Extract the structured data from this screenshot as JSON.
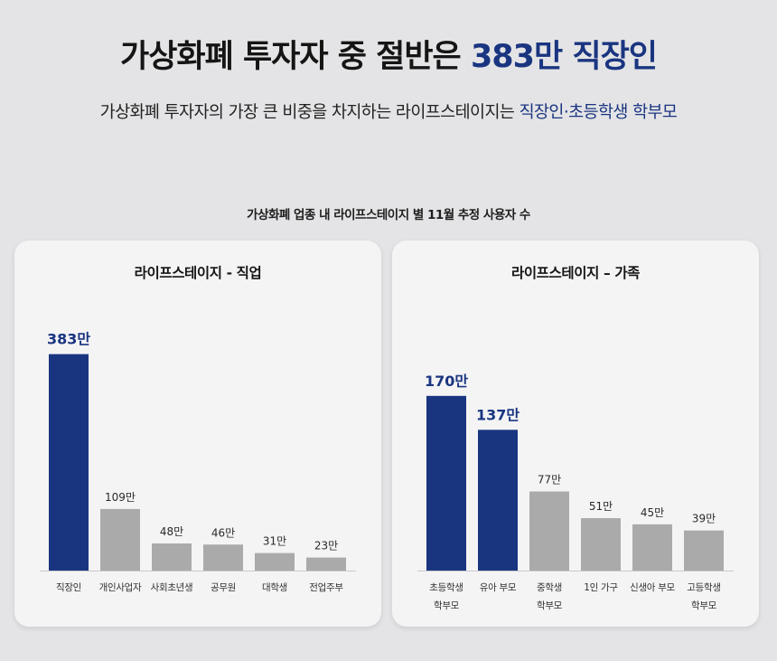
{
  "headline": {
    "main": "가상화폐 투자자 중 절반은 ",
    "highlight": "383만 직장인"
  },
  "subline": {
    "main": "가상화폐 투자자의 가장 큰 비중을 차지하는 라이프스테이지는 ",
    "highlight": "직장인·초등학생 학부모"
  },
  "caption": "가상화폐 업종 내 라이프스테이지 별 11월 추정 사용자 수",
  "colors": {
    "highlight": "#1a3580",
    "other": "#aaaaaa",
    "background": "#e4e4e6",
    "panel": "#f4f4f5"
  },
  "chart_data": [
    {
      "type": "bar",
      "title": "라이프스테이지 - 직업",
      "categories": [
        [
          "직장인"
        ],
        [
          "개인사업자"
        ],
        [
          "사회초년생"
        ],
        [
          "공무원"
        ],
        [
          "대학생"
        ],
        [
          "전업주부"
        ]
      ],
      "values": [
        383,
        109,
        48,
        46,
        31,
        23
      ],
      "value_labels": [
        "383만",
        "109만",
        "48만",
        "46만",
        "31만",
        "23만"
      ],
      "highlighted": [
        true,
        false,
        false,
        false,
        false,
        false
      ],
      "ylim": [
        0,
        400
      ],
      "grid": false,
      "legend": "none"
    },
    {
      "type": "bar",
      "title": "라이프스테이지  –  가족",
      "categories": [
        [
          "초등학생",
          "학부모"
        ],
        [
          "유아 부모"
        ],
        [
          "중학생",
          "학부모"
        ],
        [
          "1인 가구"
        ],
        [
          "신생아 부모"
        ],
        [
          "고등학생",
          "학부모"
        ]
      ],
      "values": [
        170,
        137,
        77,
        51,
        45,
        39
      ],
      "value_labels": [
        "170만",
        "137만",
        "77만",
        "51만",
        "45만",
        "39만"
      ],
      "highlighted": [
        true,
        true,
        false,
        false,
        false,
        false
      ],
      "ylim": [
        0,
        220
      ],
      "grid": false,
      "legend": "none"
    }
  ]
}
